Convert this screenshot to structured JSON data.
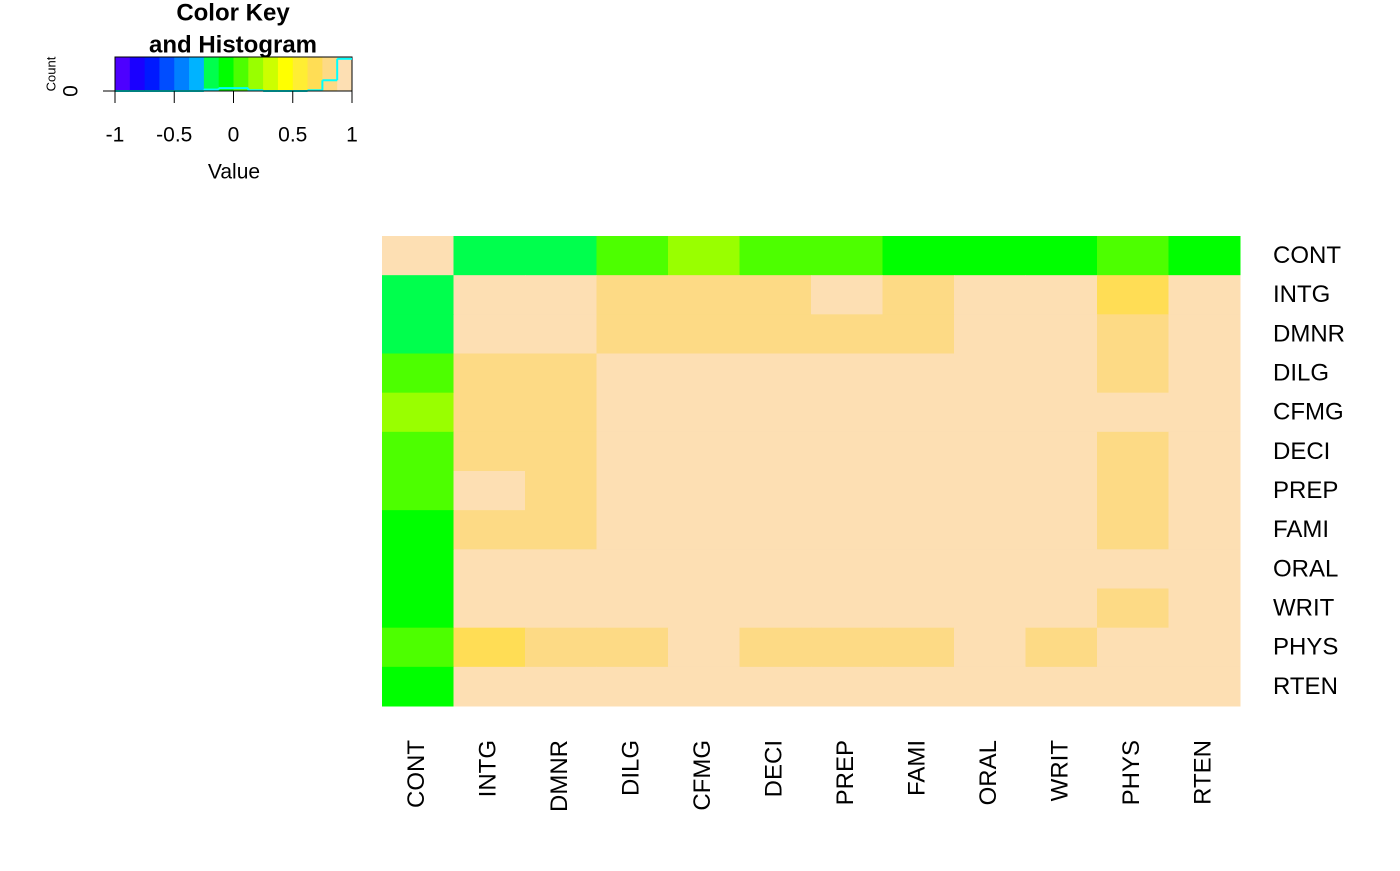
{
  "chart_data": {
    "type": "heatmap",
    "row_labels": [
      "CONT",
      "INTG",
      "DMNR",
      "DILG",
      "CFMG",
      "DECI",
      "PREP",
      "FAMI",
      "ORAL",
      "WRIT",
      "PHYS",
      "RTEN"
    ],
    "col_labels": [
      "CONT",
      "INTG",
      "DMNR",
      "DILG",
      "CFMG",
      "DECI",
      "PREP",
      "FAMI",
      "ORAL",
      "WRIT",
      "PHYS",
      "RTEN"
    ],
    "values": [
      [
        1,
        -0.13,
        -0.15,
        0.01,
        0.14,
        0.09,
        0.01,
        -0.03,
        -0.01,
        -0.04,
        0.05,
        -0.03
      ],
      [
        -0.13,
        1,
        0.96,
        0.87,
        0.81,
        0.8,
        0.88,
        0.87,
        0.91,
        0.91,
        0.74,
        0.94
      ],
      [
        -0.15,
        0.96,
        1,
        0.84,
        0.81,
        0.8,
        0.86,
        0.84,
        0.91,
        0.89,
        0.79,
        0.94
      ],
      [
        0.01,
        0.87,
        0.84,
        1,
        0.96,
        0.96,
        0.98,
        0.96,
        0.95,
        0.96,
        0.81,
        0.93
      ],
      [
        0.14,
        0.81,
        0.81,
        0.96,
        1,
        0.98,
        0.96,
        0.94,
        0.95,
        0.94,
        0.88,
        0.93
      ],
      [
        0.09,
        0.8,
        0.8,
        0.96,
        0.98,
        1,
        0.96,
        0.94,
        0.95,
        0.95,
        0.87,
        0.92
      ],
      [
        0.01,
        0.88,
        0.86,
        0.98,
        0.96,
        0.96,
        1,
        0.99,
        0.98,
        0.99,
        0.85,
        0.95
      ],
      [
        -0.03,
        0.87,
        0.84,
        0.96,
        0.94,
        0.94,
        0.99,
        1,
        0.98,
        0.99,
        0.84,
        0.94
      ],
      [
        -0.01,
        0.91,
        0.91,
        0.95,
        0.95,
        0.95,
        0.98,
        0.98,
        1,
        0.99,
        0.89,
        0.98
      ],
      [
        -0.04,
        0.91,
        0.89,
        0.96,
        0.94,
        0.95,
        0.99,
        0.99,
        0.99,
        1,
        0.86,
        0.97
      ],
      [
        0.05,
        0.74,
        0.79,
        0.81,
        0.88,
        0.87,
        0.85,
        0.84,
        0.89,
        0.86,
        1,
        0.91
      ],
      [
        -0.03,
        0.94,
        0.94,
        0.93,
        0.93,
        0.92,
        0.95,
        0.94,
        0.98,
        0.97,
        0.91,
        1
      ]
    ],
    "color_key": {
      "title": [
        "Color Key",
        "and Histogram"
      ],
      "xlabel": "Value",
      "ylabel": "Count",
      "breaks": [
        -1,
        -0.875,
        -0.75,
        -0.625,
        -0.5,
        -0.375,
        -0.25,
        -0.125,
        0,
        0.125,
        0.25,
        0.375,
        0.5,
        0.625,
        0.75,
        0.875,
        1
      ],
      "colors": [
        "#4D00FF",
        "#1A00FF",
        "#0019FF",
        "#004DFF",
        "#0080FF",
        "#00B3FF",
        "#00FF4D",
        "#00FF00",
        "#4DFF00",
        "#99FF00",
        "#CCFF00",
        "#FFFF00",
        "#FFEE33",
        "#FFDD55",
        "#FDDA85",
        "#FDDFB3"
      ],
      "xlim": [
        -1,
        1
      ],
      "xticks": [
        -1,
        -0.5,
        0,
        0.5,
        1
      ],
      "hist_counts": [
        0,
        0,
        0,
        0,
        0,
        0,
        4,
        8,
        8,
        2,
        0,
        0,
        0,
        2,
        30,
        90
      ],
      "hist_color": "#00FFFF",
      "ylim": [
        0,
        95
      ],
      "yticks": [
        0
      ]
    }
  }
}
